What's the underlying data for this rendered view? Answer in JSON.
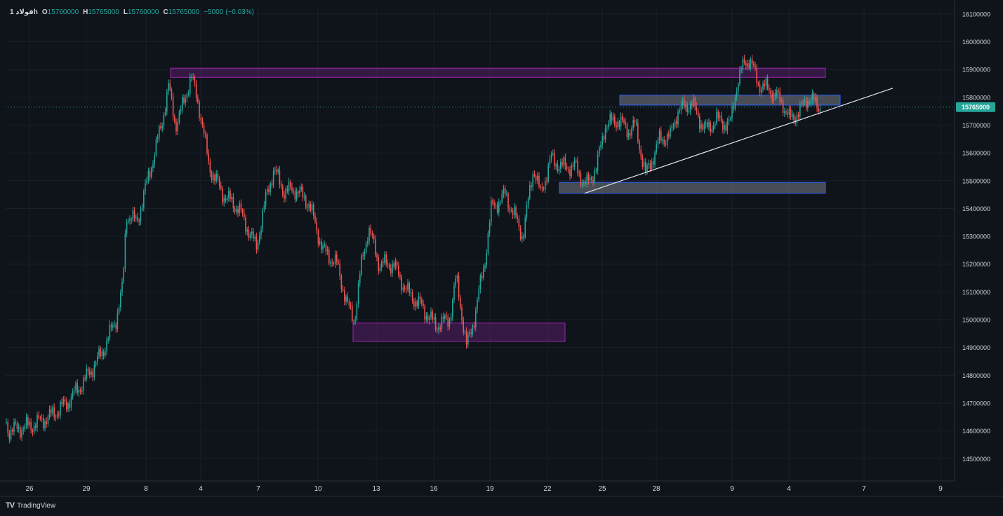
{
  "legend": {
    "symbol": "فولاد 1h",
    "open_label": "O",
    "open": "15760000",
    "high_label": "H",
    "high": "15765000",
    "low_label": "L",
    "low": "15760000",
    "close_label": "C",
    "close": "15765000",
    "change": "−5000 (−0.03%)"
  },
  "branding": {
    "name": "TradingView",
    "logo": "TV"
  },
  "colors": {
    "background": "#0f131a",
    "up": "#26a69a",
    "down": "#ef5350",
    "zone_purple": "#9c27b0",
    "zone_blue": "#2962ff",
    "trendline": "#e0e3eb",
    "price_line": "#26a69a"
  },
  "chart_data": {
    "type": "candlestick",
    "ylim": [
      14420000,
      16130000
    ],
    "y_ticks": [
      "16100000",
      "16000000",
      "15900000",
      "15800000",
      "15700000",
      "15600000",
      "15500000",
      "15400000",
      "15300000",
      "15200000",
      "15100000",
      "15000000",
      "14900000",
      "14800000",
      "14700000",
      "14600000",
      "14500000"
    ],
    "x_ticks": [
      "26",
      "29",
      "8",
      "4",
      "7",
      "10",
      "13",
      "16",
      "19",
      "22",
      "25",
      "28",
      "9",
      "4",
      "7",
      "9"
    ],
    "current_price": "15765000",
    "path_anchors": [
      [
        0,
        14720000
      ],
      [
        12,
        14600000
      ],
      [
        45,
        14620000
      ],
      [
        70,
        14650000
      ],
      [
        95,
        14700000
      ],
      [
        120,
        14780000
      ],
      [
        145,
        14880000
      ],
      [
        165,
        15000000
      ],
      [
        175,
        15120000
      ],
      [
        180,
        15380000
      ],
      [
        195,
        15350000
      ],
      [
        215,
        15550000
      ],
      [
        230,
        15700000
      ],
      [
        240,
        15840000
      ],
      [
        250,
        15700000
      ],
      [
        262,
        15780000
      ],
      [
        272,
        15880000
      ],
      [
        285,
        15750000
      ],
      [
        298,
        15550000
      ],
      [
        318,
        15450000
      ],
      [
        340,
        15400000
      ],
      [
        365,
        15260000
      ],
      [
        380,
        15450000
      ],
      [
        390,
        15540000
      ],
      [
        405,
        15460000
      ],
      [
        420,
        15470000
      ],
      [
        440,
        15420000
      ],
      [
        460,
        15250000
      ],
      [
        480,
        15200000
      ],
      [
        495,
        15050000
      ],
      [
        505,
        15000000
      ],
      [
        515,
        15200000
      ],
      [
        525,
        15330000
      ],
      [
        540,
        15200000
      ],
      [
        560,
        15200000
      ],
      [
        580,
        15100000
      ],
      [
        600,
        15050000
      ],
      [
        620,
        14980000
      ],
      [
        640,
        15000000
      ],
      [
        650,
        15150000
      ],
      [
        665,
        14900000
      ],
      [
        675,
        15000000
      ],
      [
        690,
        15200000
      ],
      [
        700,
        15400000
      ],
      [
        720,
        15450000
      ],
      [
        745,
        15300000
      ],
      [
        760,
        15550000
      ],
      [
        770,
        15450000
      ],
      [
        785,
        15580000
      ],
      [
        800,
        15550000
      ],
      [
        820,
        15550000
      ],
      [
        835,
        15480000
      ],
      [
        850,
        15550000
      ],
      [
        862,
        15700000
      ],
      [
        880,
        15720000
      ],
      [
        895,
        15680000
      ],
      [
        905,
        15700000
      ],
      [
        920,
        15520000
      ],
      [
        940,
        15650000
      ],
      [
        955,
        15660000
      ],
      [
        965,
        15750000
      ],
      [
        985,
        15780000
      ],
      [
        1005,
        15680000
      ],
      [
        1020,
        15720000
      ],
      [
        1040,
        15700000
      ],
      [
        1050,
        15850000
      ],
      [
        1060,
        15920000
      ],
      [
        1068,
        15940000
      ],
      [
        1080,
        15850000
      ],
      [
        1100,
        15820000
      ],
      [
        1115,
        15780000
      ],
      [
        1125,
        15720000
      ],
      [
        1140,
        15750000
      ],
      [
        1150,
        15800000
      ],
      [
        1160,
        15780000
      ],
      [
        1170,
        15765000
      ]
    ],
    "zones": [
      {
        "kind": "purple",
        "x1": 243,
        "x2": 1176,
        "y_top": 15905000,
        "y_bottom": 15872000
      },
      {
        "kind": "purple",
        "x1": 503,
        "x2": 805,
        "y_top": 14988000,
        "y_bottom": 14922000
      },
      {
        "kind": "blue",
        "x1": 883,
        "x2": 1197,
        "y_top": 15808000,
        "y_bottom": 15772000
      },
      {
        "kind": "blue",
        "x1": 797,
        "x2": 1176,
        "y_top": 15494000,
        "y_bottom": 15455000
      }
    ],
    "trendline": {
      "x1": 833,
      "y1": 15455000,
      "x2": 1272,
      "y2": 15833000
    }
  }
}
